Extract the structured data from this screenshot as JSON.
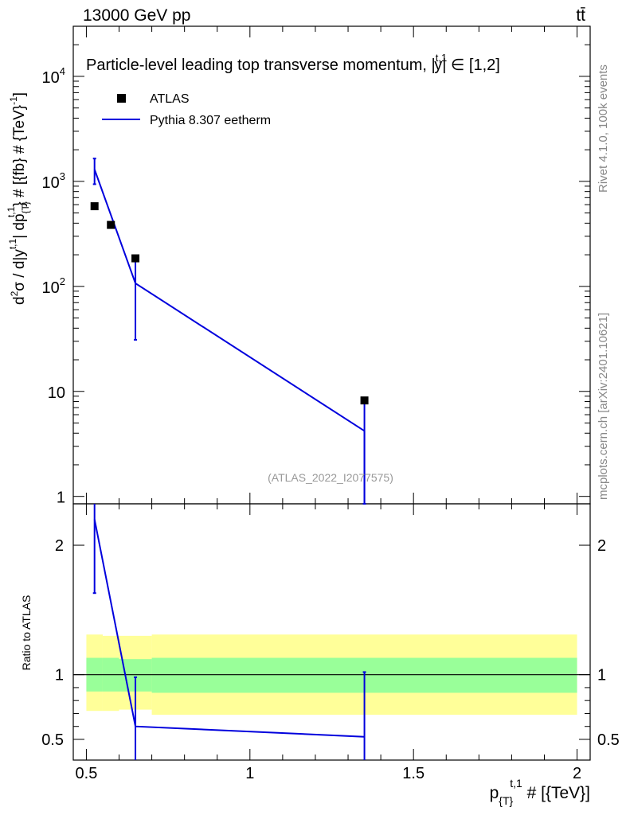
{
  "header": {
    "energy": "13000 GeV pp",
    "process": "tt̄"
  },
  "side_labels": {
    "rivet": "Rivet 4.1.0,  100k events",
    "mcplots": "mcplots.cern.ch [arXiv:2401.10621]"
  },
  "chart_data": {
    "type": "scatter",
    "title": "Particle-level leading top transverse momentum, |y^{t,1}| ∈ [1,2]",
    "title_main": "Particle-level leading top transverse momentum, |",
    "title_sup": "t,1",
    "title_y": "y",
    "title_tail": "| ∈ [1,2]",
    "watermark": "(ATLAS_2022_I2077575)",
    "xlabel_main": "p",
    "xlabel_sub": "{T}",
    "xlabel_sup": "t,1",
    "xlabel_tail": " # [{TeV}]",
    "ylabel": "d²σ / d|y^{t,1}| dp_{T}^{t,1} # [{fb} # {TeV}^-1]",
    "ylabel_parts": {
      "d": "d",
      "two": "2",
      "sigma": "σ / d|y",
      "sup1": "t,1",
      "dp": "| dp",
      "sub": "{T}",
      "sup2": "t,1",
      "unit": "} # [{fb} # {TeV}",
      "unit_sup": "-1",
      "close": "]"
    },
    "ratio_ylabel": "Ratio to ATLAS",
    "xlim": [
      0.46,
      2.04
    ],
    "ylim": [
      0.85,
      30000
    ],
    "ratio_ylim": [
      0.34,
      2.32
    ],
    "x_ticks": [
      "0.5",
      "1",
      "1.5",
      "2"
    ],
    "x_tick_values": [
      0.5,
      1.0,
      1.5,
      2.0
    ],
    "y_ticks": [
      {
        "value": 1,
        "label": "1",
        "exp": ""
      },
      {
        "value": 10,
        "label": "10",
        "exp": ""
      },
      {
        "value": 100,
        "label": "10",
        "exp": "2"
      },
      {
        "value": 1000,
        "label": "10",
        "exp": "3"
      },
      {
        "value": 10000,
        "label": "10",
        "exp": "4"
      }
    ],
    "ratio_ticks": [
      "0.5",
      "1",
      "2"
    ],
    "ratio_tick_values": [
      0.5,
      1.0,
      2.0
    ],
    "legend": [
      {
        "name": "ATLAS",
        "marker": "square",
        "color": "#000000"
      },
      {
        "name": "Pythia 8.307 eetherm",
        "marker": "line",
        "color": "#0000dd"
      }
    ],
    "series": [
      {
        "name": "ATLAS",
        "x": [
          0.525,
          0.575,
          0.65,
          1.35
        ],
        "y": [
          580,
          385,
          185,
          8.2
        ]
      },
      {
        "name": "Pythia 8.307 eetherm",
        "x": [
          0.525,
          0.65,
          1.35
        ],
        "y": [
          1300,
          107,
          4.2
        ],
        "y_err_low": [
          940,
          31,
          0.7
        ],
        "y_err_high": [
          1650,
          180,
          8.2
        ]
      }
    ],
    "ratio_series": {
      "x": [
        0.525,
        0.65,
        1.35
      ],
      "y": [
        2.2,
        0.6,
        0.52
      ],
      "y_err_low": [
        1.63,
        0.34,
        0.34
      ],
      "y_err_high": [
        2.32,
        0.98,
        1.02
      ]
    },
    "ratio_bands": [
      {
        "x0": 0.5,
        "x1": 0.55,
        "inner": [
          0.87,
          1.13
        ],
        "outer": [
          0.72,
          1.31
        ]
      },
      {
        "x0": 0.55,
        "x1": 0.6,
        "inner": [
          0.87,
          1.13
        ],
        "outer": [
          0.72,
          1.3
        ]
      },
      {
        "x0": 0.6,
        "x1": 0.7,
        "inner": [
          0.87,
          1.12
        ],
        "outer": [
          0.73,
          1.3
        ]
      },
      {
        "x0": 0.7,
        "x1": 2.0,
        "inner": [
          0.86,
          1.13
        ],
        "outer": [
          0.69,
          1.31
        ]
      }
    ],
    "band_colors": {
      "inner": "#99ff99",
      "outer": "#ffff99"
    },
    "mc_color": "#0000dd"
  }
}
